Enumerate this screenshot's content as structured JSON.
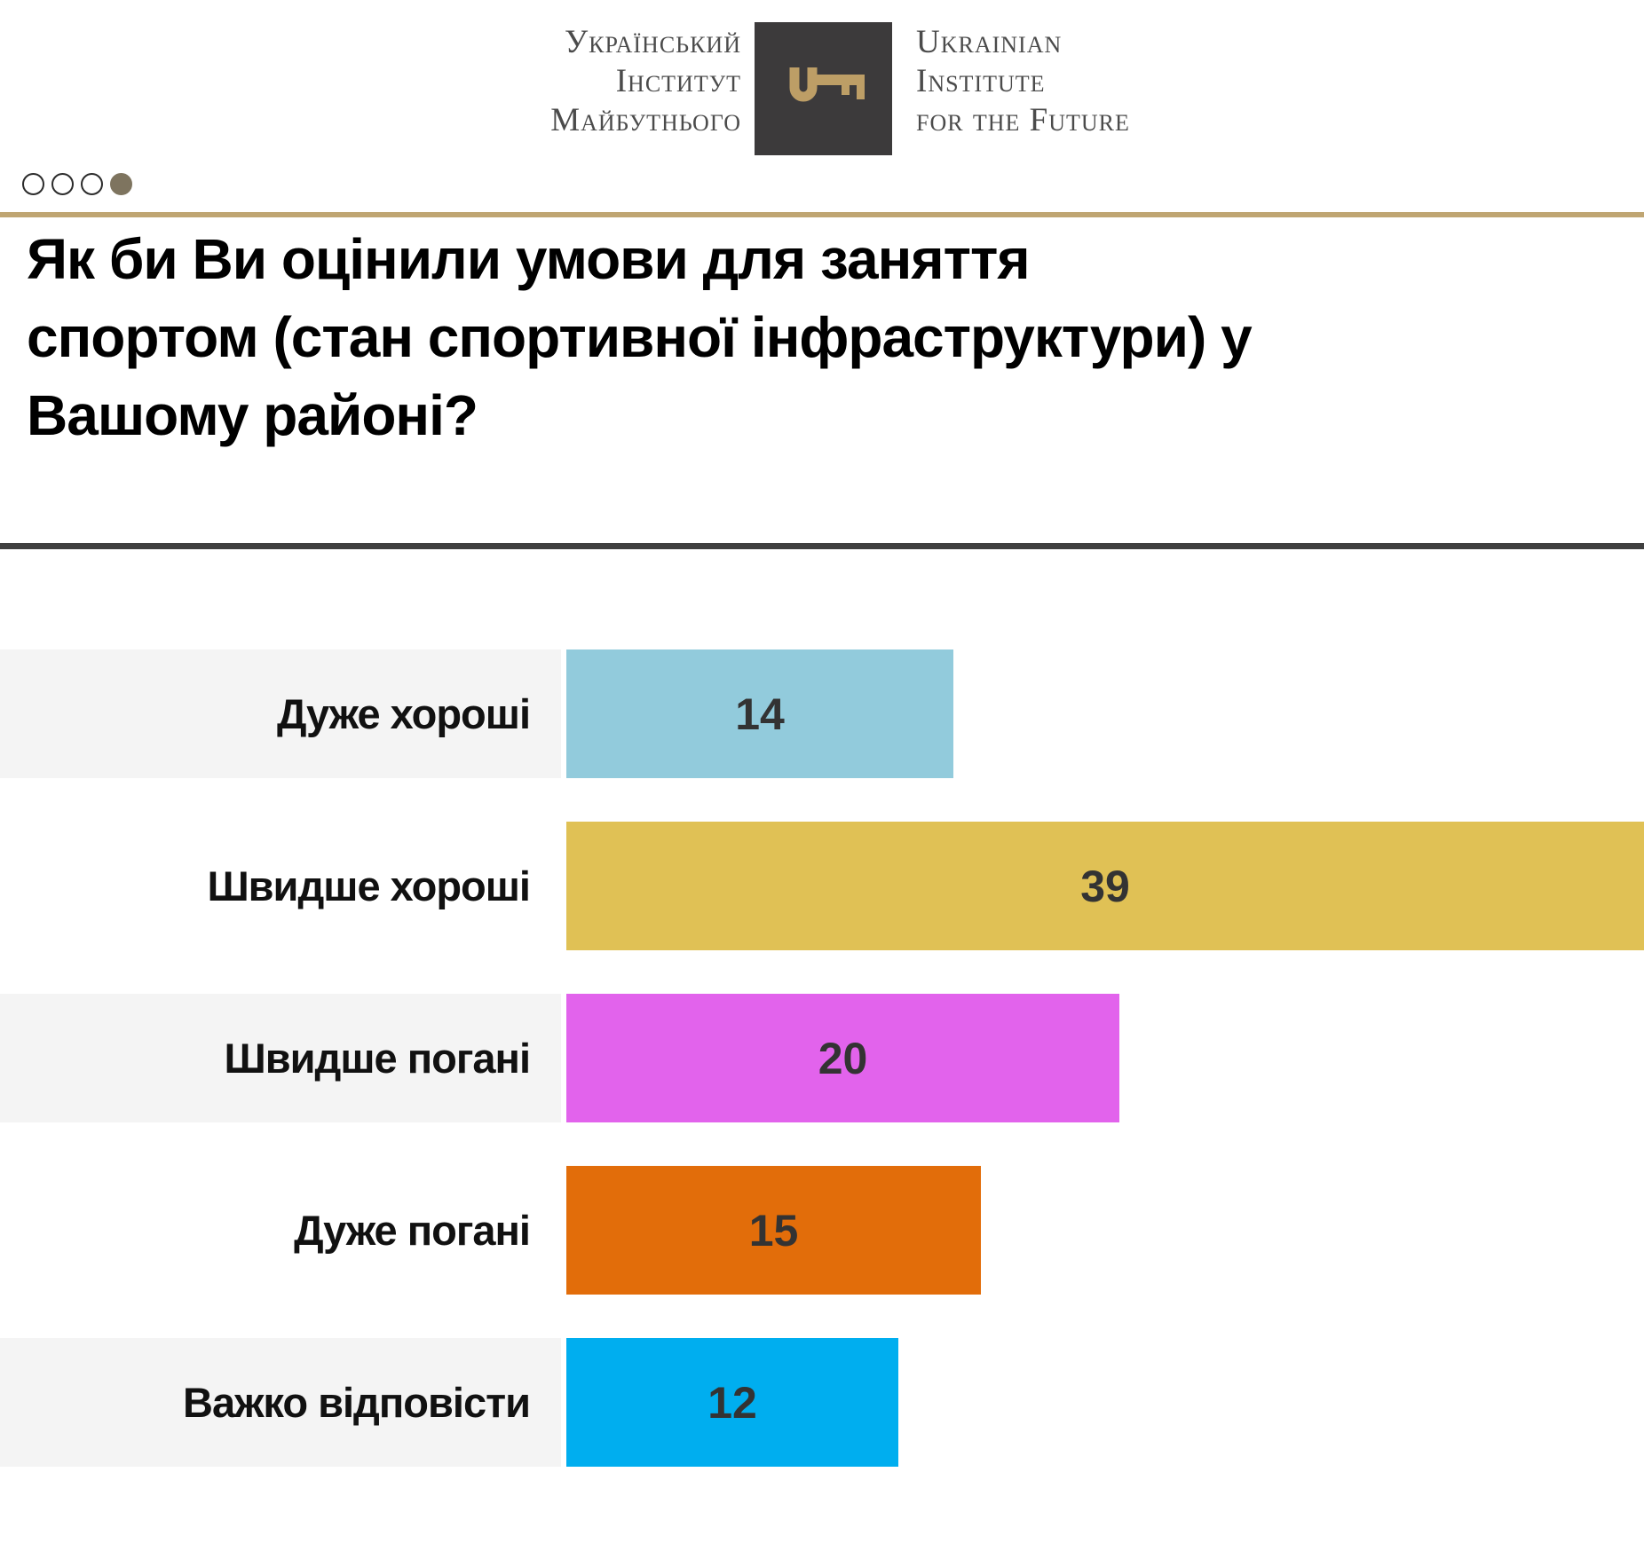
{
  "header": {
    "logo_left": {
      "lines": [
        "Український",
        "Інститут",
        "Майбутнього"
      ]
    },
    "logo_right": {
      "lines": [
        "Ukrainian",
        "Institute",
        "for the Future"
      ]
    },
    "logo_icon": "key-icon",
    "logo_colors": {
      "square": "#3c3a3b",
      "key": "#bd9e66"
    },
    "pagination": {
      "total": 4,
      "active_index": 3
    }
  },
  "dividers": {
    "gold": "#bfa572",
    "dark": "#3f3f3f"
  },
  "title": {
    "text": "Як би Ви оцінили умови для заняття спортом (стан спортивної інфраструктури) у Вашому районі?",
    "lines": [
      "Як би Ви оцінили умови для заняття",
      "спортом (стан спортивної інфраструктури) у",
      "Вашому районі?"
    ]
  },
  "chart_data": {
    "type": "bar",
    "orientation": "horizontal",
    "title": "Як би Ви оцінили умови для заняття спортом (стан спортивної інфраструктури) у Вашому районі?",
    "categories": [
      "Дуже хороші",
      "Швидше хороші",
      "Швидше погані",
      "Дуже погані",
      "Важко відповісти"
    ],
    "values": [
      14,
      39,
      20,
      15,
      12
    ],
    "bar_colors": [
      "#92cbdc",
      "#e0c155",
      "#e263ec",
      "#e26d0a",
      "#00aeef"
    ],
    "value_label_position": "center",
    "xlim": [
      0,
      39
    ],
    "grid": false,
    "legend": false,
    "striped_label_bg": "#f4f4f4",
    "striped_rows": [
      0,
      2,
      4
    ]
  }
}
